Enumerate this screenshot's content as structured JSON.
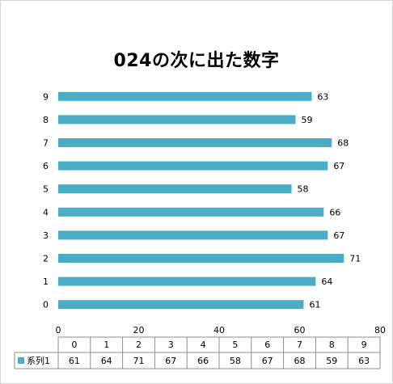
{
  "chart_data": {
    "type": "bar",
    "orientation": "horizontal",
    "title": "024の次に出た数字",
    "categories": [
      "0",
      "1",
      "2",
      "3",
      "4",
      "5",
      "6",
      "7",
      "8",
      "9"
    ],
    "series": [
      {
        "name": "系列1",
        "values": [
          61,
          64,
          71,
          67,
          66,
          58,
          67,
          68,
          59,
          63
        ],
        "color": "#4bacc6"
      }
    ],
    "xlim": [
      0,
      80
    ],
    "xticks": [
      "0",
      "20",
      "40",
      "60",
      "80"
    ],
    "grid": false,
    "data_labels": true,
    "data_table": true,
    "legend": "data-table-key"
  }
}
